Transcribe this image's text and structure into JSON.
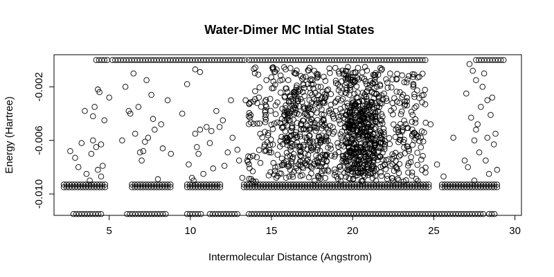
{
  "chart_data": {
    "type": "scatter",
    "title": "Water-Dimer MC Intial States",
    "xlabel": "Intermolecular Distance (Angstrom)",
    "ylabel": "Energy (Hartree)",
    "xlim": [
      1.6,
      30.4
    ],
    "ylim": [
      -0.0116,
      0.0004
    ],
    "xticks": [
      5,
      10,
      15,
      20,
      25,
      30
    ],
    "xtick_labels": [
      "5",
      "10",
      "15",
      "20",
      "25",
      "30"
    ],
    "yticks": [
      -0.01,
      -0.006,
      -0.002
    ],
    "ytick_labels": [
      "-0.010",
      "-0.006",
      "-0.002"
    ],
    "grid": false,
    "legend": "none",
    "marker": "open-circle",
    "series": [
      {
        "name": "",
        "bands": [
          {
            "y": 0.0,
            "segments": [
              [
                4.2,
                4.9
              ],
              [
                5.2,
                13.5
              ],
              [
                13.6,
                24.5
              ],
              [
                27.6,
                29.3
              ]
            ]
          },
          {
            "y": -0.0093,
            "segments": [
              [
                2.2,
                4.9
              ],
              [
                6.4,
                8.9
              ],
              [
                9.8,
                12.0
              ],
              [
                13.3,
                24.8
              ],
              [
                25.5,
                28.9
              ]
            ]
          },
          {
            "y": -0.0095,
            "segments": [
              [
                2.2,
                4.9
              ],
              [
                6.4,
                8.9
              ],
              [
                9.8,
                12.0
              ],
              [
                13.3,
                24.8
              ],
              [
                25.5,
                28.9
              ]
            ]
          },
          {
            "y": -0.0115,
            "segments": [
              [
                2.8,
                4.5
              ],
              [
                6.1,
                8.5
              ],
              [
                9.8,
                10.8
              ],
              [
                11.2,
                12.9
              ],
              [
                13.6,
                28.1
              ],
              [
                28.4,
                28.8
              ]
            ]
          }
        ],
        "points": [
          [
            2.6,
            -0.0068
          ],
          [
            2.9,
            -0.0073
          ],
          [
            3.1,
            -0.008
          ],
          [
            3.3,
            -0.0062
          ],
          [
            3.5,
            -0.0038
          ],
          [
            3.6,
            -0.0085
          ],
          [
            3.8,
            -0.009
          ],
          [
            3.9,
            -0.007
          ],
          [
            4.0,
            -0.006
          ],
          [
            4.0,
            -0.0042
          ],
          [
            4.1,
            -0.0035
          ],
          [
            4.2,
            -0.0065
          ],
          [
            4.3,
            -0.0022
          ],
          [
            4.4,
            -0.0024
          ],
          [
            4.5,
            -0.0063
          ],
          [
            4.5,
            -0.0087
          ],
          [
            4.6,
            -0.0079
          ],
          [
            4.7,
            -0.0045
          ],
          [
            5.0,
            -0.0028
          ],
          [
            4.3,
            -0.0082
          ],
          [
            5.8,
            -0.006
          ],
          [
            6.2,
            -0.0038
          ],
          [
            6.3,
            -0.004
          ],
          [
            6.5,
            -0.001
          ],
          [
            6.6,
            -0.0055
          ],
          [
            6.8,
            -0.0035
          ],
          [
            7.0,
            -0.0075
          ],
          [
            7.1,
            -0.0068
          ],
          [
            7.2,
            -0.0061
          ],
          [
            7.3,
            -0.0015
          ],
          [
            7.4,
            -0.0058
          ],
          [
            7.6,
            -0.0026
          ],
          [
            7.8,
            -0.0052
          ],
          [
            8.0,
            -0.0089
          ],
          [
            8.2,
            -0.0048
          ],
          [
            8.3,
            -0.0066
          ],
          [
            8.6,
            -0.003
          ],
          [
            6.9,
            -0.0069
          ],
          [
            7.7,
            -0.0044
          ],
          [
            9.9,
            -0.0078
          ],
          [
            10.1,
            -0.0088
          ],
          [
            10.3,
            -0.0055
          ],
          [
            10.4,
            -0.0065
          ],
          [
            10.5,
            -0.007
          ],
          [
            10.6,
            -0.0052
          ],
          [
            10.8,
            -0.0085
          ],
          [
            11.0,
            -0.005
          ],
          [
            11.2,
            -0.0062
          ],
          [
            11.3,
            -0.0053
          ],
          [
            11.6,
            -0.0038
          ],
          [
            11.8,
            -0.005
          ],
          [
            12.1,
            -0.0079
          ],
          [
            12.3,
            -0.0069
          ],
          [
            12.6,
            -0.0058
          ],
          [
            12.9,
            -0.0067
          ],
          [
            13.2,
            -0.0088
          ],
          [
            13.4,
            -0.003
          ],
          [
            13.6,
            -0.0042
          ],
          [
            10.2,
            -0.009
          ],
          [
            10.6,
            -0.0009
          ],
          [
            10.3,
            -0.0007
          ],
          [
            9.8,
            -0.0018
          ],
          [
            11.4,
            -0.0081
          ],
          [
            12.0,
            -0.0045
          ],
          [
            6.0,
            -0.002
          ],
          [
            8.8,
            -0.007
          ],
          [
            13.0,
            -0.0075
          ],
          [
            12.5,
            -0.003
          ],
          [
            9.5,
            -0.004
          ],
          [
            27.5,
            -0.006
          ],
          [
            27.6,
            -0.0052
          ],
          [
            27.7,
            -0.0048
          ],
          [
            27.8,
            -0.0069
          ],
          [
            27.9,
            -0.0035
          ],
          [
            28.0,
            -0.002
          ],
          [
            28.1,
            -0.001
          ],
          [
            28.2,
            -0.0075
          ],
          [
            28.3,
            -0.0058
          ],
          [
            28.4,
            -0.0085
          ],
          [
            28.5,
            -0.0041
          ],
          [
            28.6,
            -0.0028
          ],
          [
            28.7,
            -0.0063
          ],
          [
            28.8,
            -0.0055
          ],
          [
            28.9,
            -0.0082
          ],
          [
            27.2,
            -0.0003
          ],
          [
            27.4,
            -0.0008
          ],
          [
            27.0,
            -0.0025
          ],
          [
            26.2,
            -0.0058
          ],
          [
            26.9,
            -0.0075
          ],
          [
            27.1,
            -0.008
          ],
          [
            27.5,
            -0.009
          ],
          [
            27.3,
            -0.0043
          ],
          [
            28.3,
            -0.003
          ],
          [
            27.6,
            -0.0015
          ],
          [
            25.2,
            -0.0078
          ],
          [
            24.8,
            -0.0048
          ],
          [
            25.6,
            -0.0087
          ]
        ],
        "clusters": [
          {
            "x": [
              13.5,
              19.2
            ],
            "y": [
              -0.0091,
              -0.0005
            ],
            "n": 330,
            "seed": 11
          },
          {
            "x": [
              15.8,
              18.4
            ],
            "y": [
              -0.008,
              -0.002
            ],
            "n": 160,
            "seed": 22
          },
          {
            "x": [
              19.2,
              22.0
            ],
            "y": [
              -0.0091,
              -0.0005
            ],
            "n": 340,
            "seed": 33
          },
          {
            "x": [
              19.6,
              21.4
            ],
            "y": [
              -0.0085,
              -0.003
            ],
            "n": 220,
            "seed": 44
          },
          {
            "x": [
              22.0,
              24.5
            ],
            "y": [
              -0.0091,
              -0.001
            ],
            "n": 150,
            "seed": 55
          }
        ]
      }
    ]
  }
}
